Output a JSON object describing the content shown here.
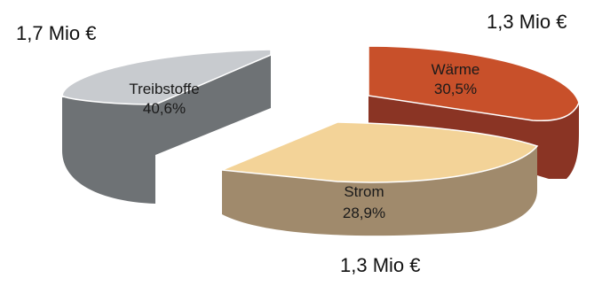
{
  "chart_data": {
    "type": "pie",
    "variant": "3d-exploded",
    "title": "",
    "slices": [
      {
        "name": "Treibstoffe",
        "percent_label": "40,6%",
        "value": 40.6,
        "amount": "1,7 Mio €",
        "color": "#c8cbcf",
        "side_color": "#6e7275"
      },
      {
        "name": "Wärme",
        "percent_label": "30,5%",
        "value": 30.5,
        "amount": "1,3 Mio €",
        "color": "#c8502a",
        "side_color": "#8a3424"
      },
      {
        "name": "Strom",
        "percent_label": "28,9%",
        "value": 28.9,
        "amount": "1,3 Mio €",
        "color": "#f3d398",
        "side_color": "#a08a6c"
      }
    ]
  }
}
